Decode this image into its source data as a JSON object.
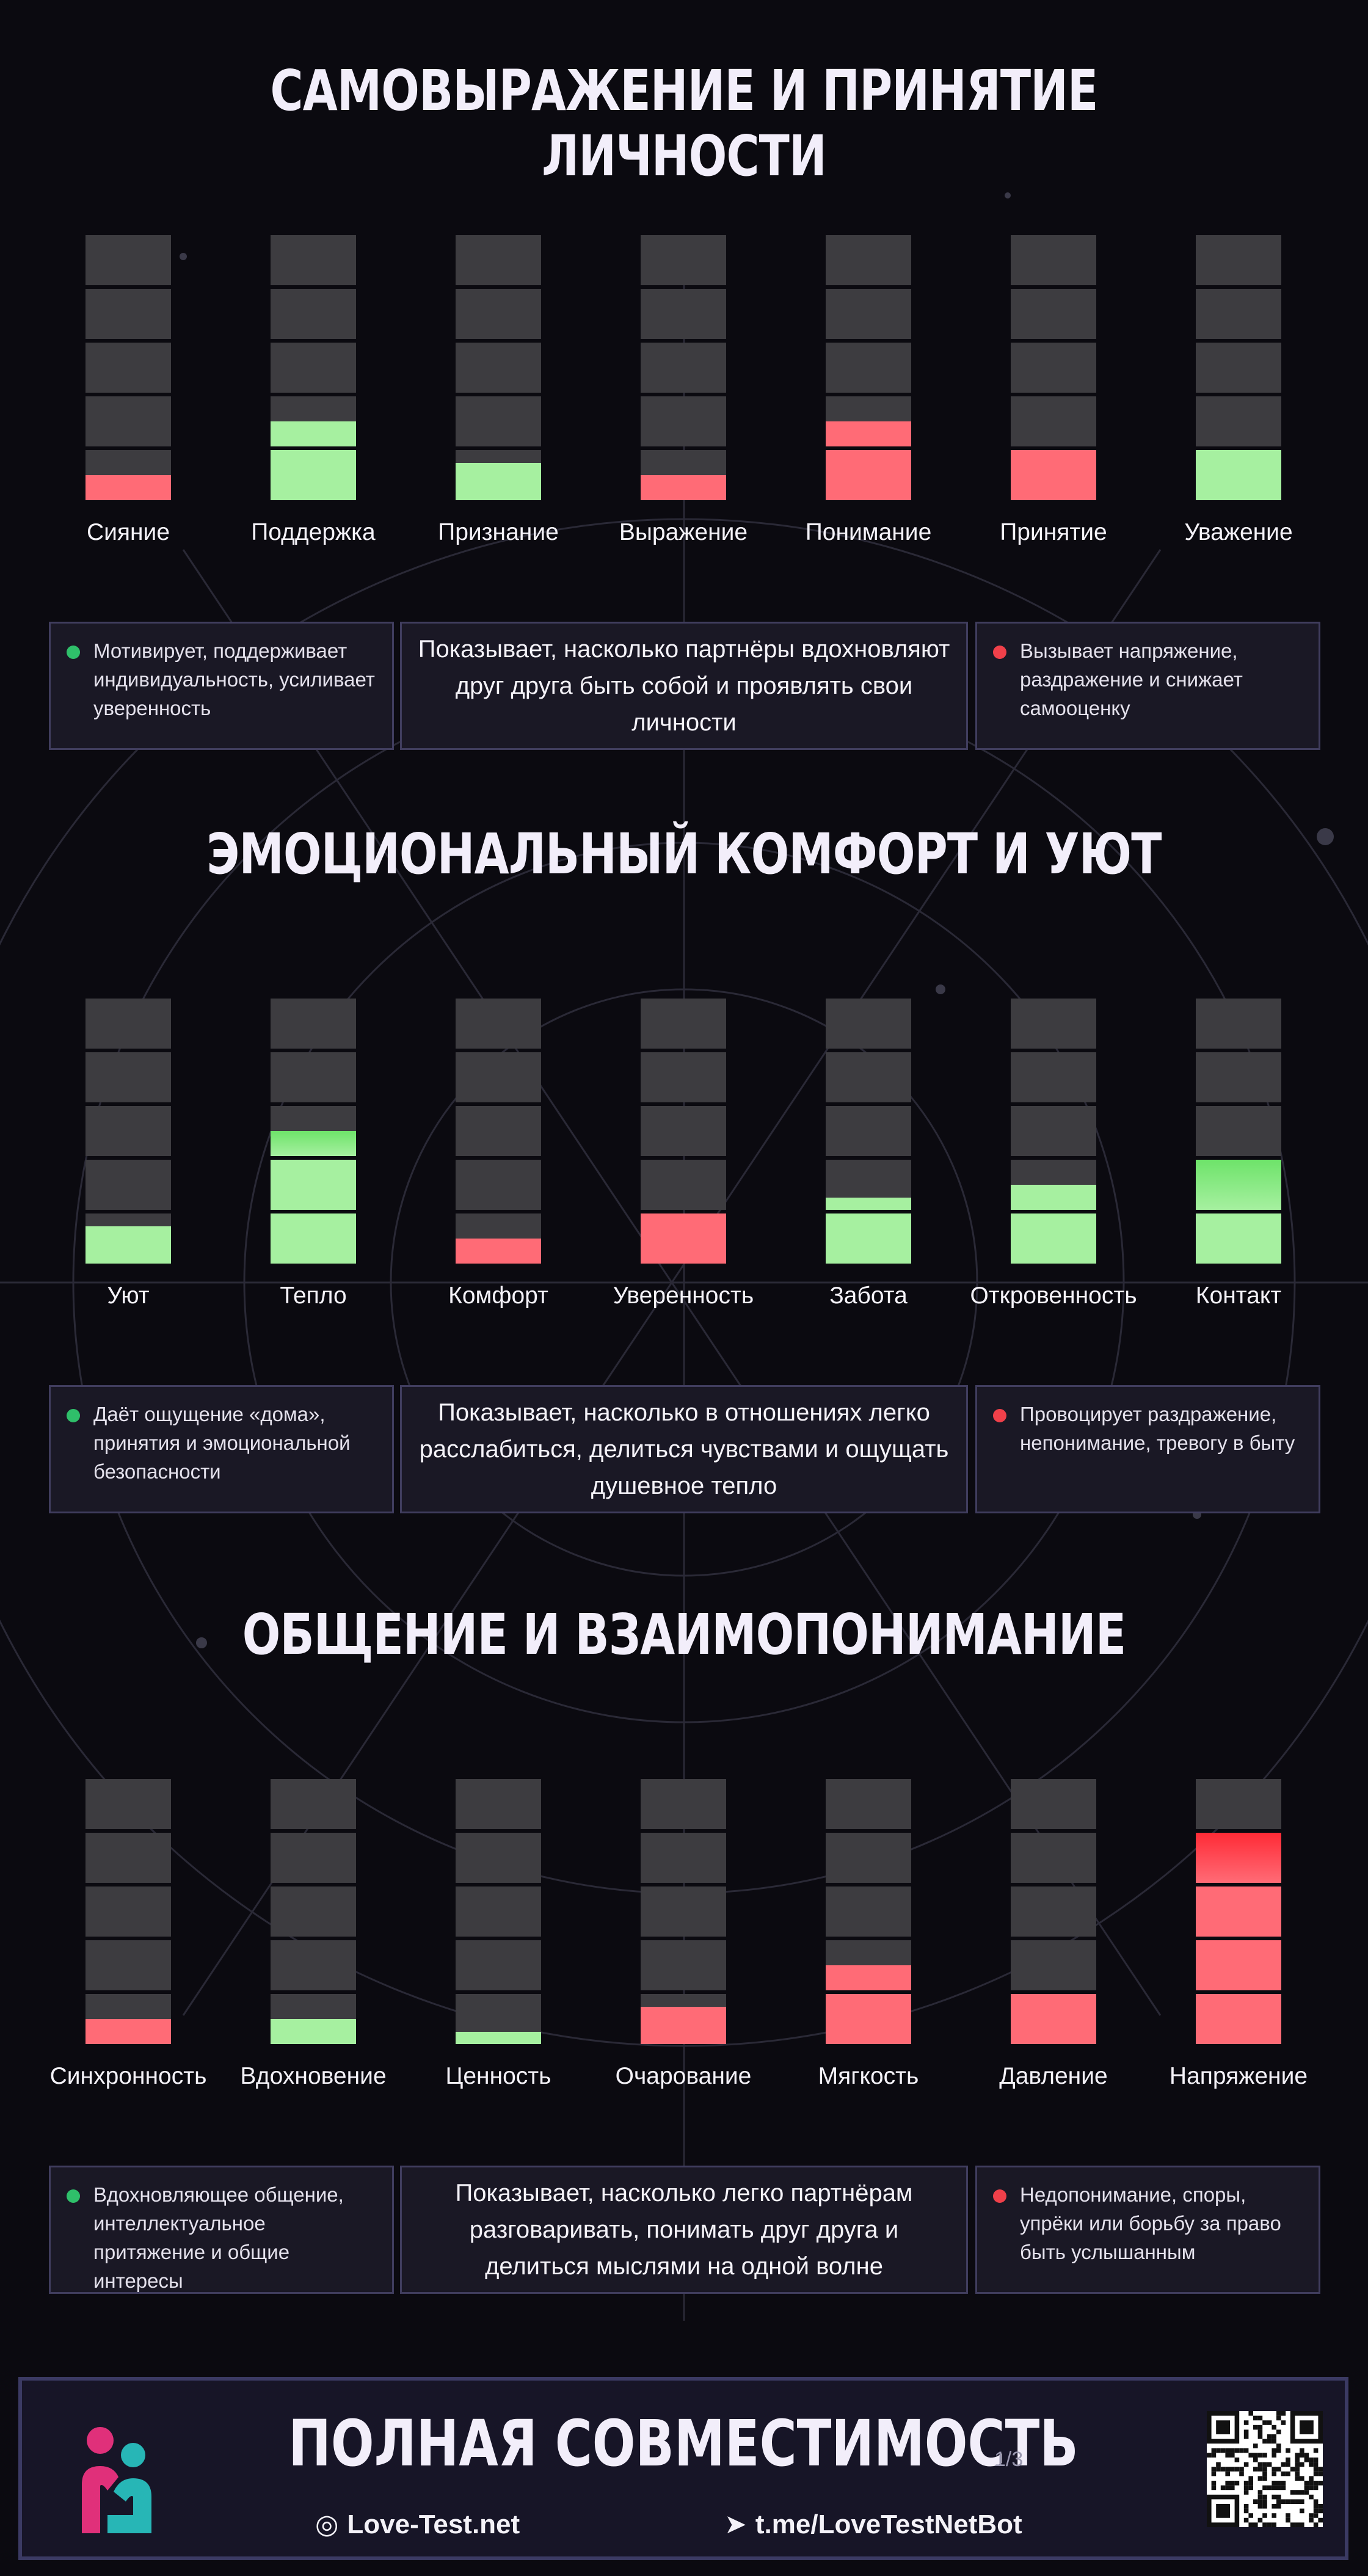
{
  "colors": {
    "background": "#0b0a10",
    "empty_segment": "#3d3c40",
    "positive": "#a6f0a0",
    "positive_bright": "#6ee36a",
    "negative": "#ff6b76",
    "negative_bright": "#ff2b36",
    "positive_dot": "#2fbf6a",
    "negative_dot": "#f0404a",
    "box_bg": "#1a1825",
    "box_border": "#403d5e"
  },
  "chart_data": [
    {
      "type": "bar",
      "title": "САМОВЫРАЖЕНИЕ И ПРИНЯТИЕ ЛИЧНОСТИ",
      "segments_per_bar": 5,
      "categories": [
        "Сияние",
        "Поддержка",
        "Признание",
        "Выражение",
        "Понимание",
        "Принятие",
        "Уважение"
      ],
      "values": [
        0.5,
        1.5,
        0.75,
        0.5,
        1.5,
        1,
        1
      ],
      "tone": [
        "negative",
        "positive",
        "positive",
        "negative",
        "negative",
        "negative",
        "positive"
      ],
      "positive_note": "Мотивирует, поддерживает индивидуальность, усиливает уверенность",
      "description": "Показывает, насколько партнёры вдохновляют друг друга быть собой и проявлять свои личности",
      "negative_note": "Вызывает напряжение, раздражение и снижает самооценку"
    },
    {
      "type": "bar",
      "title": "ЭМОЦИОНАЛЬНЫЙ КОМФОРТ И УЮТ",
      "segments_per_bar": 5,
      "categories": [
        "Уют",
        "Тепло",
        "Комфорт",
        "Уверенность",
        "Забота",
        "Откровенность",
        "Контакт"
      ],
      "values": [
        0.75,
        2.5,
        0.5,
        1,
        1.25,
        1.5,
        2
      ],
      "tone": [
        "positive",
        "positive",
        "negative",
        "negative",
        "positive",
        "positive",
        "positive"
      ],
      "positive_note": "Даёт ощущение «дома», принятия и эмоциональной безопасности",
      "description": "Показывает, насколько в отношениях легко расслабиться, делиться чувствами и ощущать душевное тепло",
      "negative_note": "Провоцирует раздражение, непонимание, тревогу в быту"
    },
    {
      "type": "bar",
      "title": "ОБЩЕНИЕ И ВЗАИМОПОНИМАНИЕ",
      "segments_per_bar": 5,
      "categories": [
        "Синхронность",
        "Вдохновение",
        "Ценность",
        "Очарование",
        "Мягкость",
        "Давление",
        "Напряжение"
      ],
      "values": [
        0.5,
        0.5,
        0.25,
        0.75,
        1.5,
        1,
        4
      ],
      "tone": [
        "negative",
        "positive",
        "positive",
        "negative",
        "negative",
        "negative",
        "negative"
      ],
      "positive_note": "Вдохновляющее общение, интеллектуальное притяжение и общие интересы",
      "description": "Показывает, насколько легко партнёрам разговаривать, понимать друг друга и делиться мыслями на одной волне",
      "negative_note": "Недопонимание, споры, упрёки или борьбу за право быть услышанным"
    }
  ],
  "footer": {
    "title": "ПОЛНАЯ СОВМЕСТИМОСТЬ",
    "page": "1/3",
    "site": "Love-Test.net",
    "bot": "t.me/LoveTestNetBot",
    "site_icon": "globe-icon",
    "bot_icon": "telegram-icon"
  }
}
